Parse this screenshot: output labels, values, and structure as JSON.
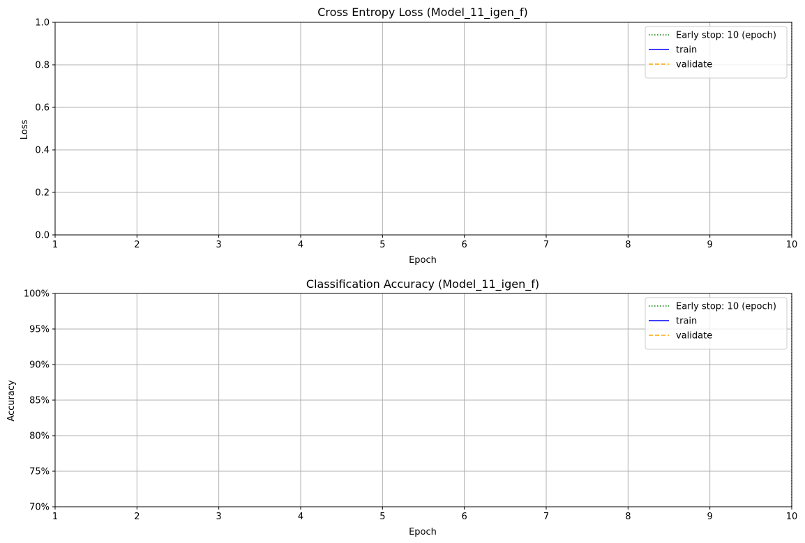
{
  "chart_data": [
    {
      "type": "line",
      "title": "Cross Entropy Loss (Model_11_igen_f)",
      "xlabel": "Epoch",
      "ylabel": "Loss",
      "xlim": [
        1,
        10
      ],
      "ylim": [
        0.0,
        1.0
      ],
      "xticks": [
        1,
        2,
        3,
        4,
        5,
        6,
        7,
        8,
        9,
        10
      ],
      "xtick_labels": [
        "1",
        "2",
        "3",
        "4",
        "5",
        "6",
        "7",
        "8",
        "9",
        "10"
      ],
      "yticks": [
        0.0,
        0.2,
        0.4,
        0.6,
        0.8,
        1.0
      ],
      "ytick_labels": [
        "0.0",
        "0.2",
        "0.4",
        "0.6",
        "0.8",
        "1.0"
      ],
      "grid": true,
      "legend_placement": "top-right",
      "early_stop_epoch": 10,
      "legend": [
        {
          "label": "Early stop: 10 (epoch)",
          "color": "#008000",
          "style": "dotted"
        },
        {
          "label": "train",
          "color": "#0000ff",
          "style": "solid"
        },
        {
          "label": "validate",
          "color": "#ffa500",
          "style": "dashed"
        }
      ],
      "series": [
        {
          "name": "train",
          "x": [],
          "y": []
        },
        {
          "name": "validate",
          "x": [],
          "y": []
        }
      ]
    },
    {
      "type": "line",
      "title": "Classification Accuracy (Model_11_igen_f)",
      "xlabel": "Epoch",
      "ylabel": "Accuracy",
      "xlim": [
        1,
        10
      ],
      "ylim": [
        0.7,
        1.0
      ],
      "xticks": [
        1,
        2,
        3,
        4,
        5,
        6,
        7,
        8,
        9,
        10
      ],
      "xtick_labels": [
        "1",
        "2",
        "3",
        "4",
        "5",
        "6",
        "7",
        "8",
        "9",
        "10"
      ],
      "yticks": [
        0.7,
        0.75,
        0.8,
        0.85,
        0.9,
        0.95,
        1.0
      ],
      "ytick_labels": [
        "70%",
        "75%",
        "80%",
        "85%",
        "90%",
        "95%",
        "100%"
      ],
      "grid": true,
      "legend_placement": "top-right",
      "early_stop_epoch": 10,
      "legend": [
        {
          "label": "Early stop: 10 (epoch)",
          "color": "#008000",
          "style": "dotted"
        },
        {
          "label": "train",
          "color": "#0000ff",
          "style": "solid"
        },
        {
          "label": "validate",
          "color": "#ffa500",
          "style": "dashed"
        }
      ],
      "series": [
        {
          "name": "train",
          "x": [],
          "y": []
        },
        {
          "name": "validate",
          "x": [],
          "y": []
        }
      ]
    }
  ]
}
